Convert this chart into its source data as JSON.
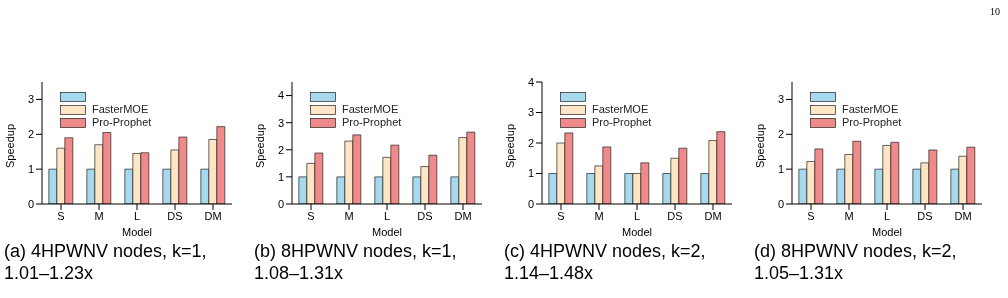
{
  "chart_data": [
    {
      "type": "bar",
      "title": "(a) 4HPWNV nodes, k=1, 1.01–1.23x",
      "xlabel": "Model",
      "ylabel": "Speedup",
      "categories": [
        "S",
        "M",
        "L",
        "DS",
        "DM"
      ],
      "ylim": [
        0,
        3.5
      ],
      "yticks": [
        0,
        1,
        2,
        3
      ],
      "legend": "top left",
      "grid": false,
      "series": [
        {
          "color": "#a6d8ee",
          "values": [
            1,
            1,
            1,
            1,
            1
          ]
        },
        {
          "name": "FasterMOE",
          "color": "#fde5c5",
          "values": [
            1.6,
            1.7,
            1.45,
            1.55,
            1.85
          ]
        },
        {
          "name": "Pro-Prophet",
          "color": "#f08a8a",
          "values": [
            1.9,
            2.05,
            1.47,
            1.92,
            2.22
          ]
        }
      ]
    },
    {
      "type": "bar",
      "title": "(b) 8HPWNV nodes, k=1, 1.08–1.31x",
      "xlabel": "Model",
      "ylabel": "Speedup",
      "categories": [
        "S",
        "M",
        "L",
        "DS",
        "DM"
      ],
      "ylim": [
        0,
        4.5
      ],
      "yticks": [
        0,
        1,
        2,
        3,
        4
      ],
      "legend": "top left",
      "grid": false,
      "series": [
        {
          "color": "#a6d8ee",
          "values": [
            1,
            1,
            1,
            1,
            1
          ]
        },
        {
          "name": "FasterMOE",
          "color": "#fde5c5",
          "values": [
            1.5,
            2.32,
            1.72,
            1.38,
            2.45
          ]
        },
        {
          "name": "Pro-Prophet",
          "color": "#f08a8a",
          "values": [
            1.88,
            2.55,
            2.17,
            1.8,
            2.65
          ]
        }
      ]
    },
    {
      "type": "bar",
      "title": "(c) 4HPWNV nodes, k=2, 1.14–1.48x",
      "xlabel": "Model",
      "ylabel": "Speedup",
      "categories": [
        "S",
        "M",
        "L",
        "DS",
        "DM"
      ],
      "ylim": [
        0,
        4
      ],
      "yticks": [
        0,
        1,
        2,
        3,
        4
      ],
      "legend": "top left",
      "grid": false,
      "series": [
        {
          "color": "#a6d8ee",
          "values": [
            1,
            1,
            1,
            1,
            1
          ]
        },
        {
          "name": "FasterMOE",
          "color": "#fde5c5",
          "values": [
            2.0,
            1.25,
            1.0,
            1.5,
            2.08
          ]
        },
        {
          "name": "Pro-Prophet",
          "color": "#f08a8a",
          "values": [
            2.33,
            1.87,
            1.35,
            1.83,
            2.37
          ]
        }
      ]
    },
    {
      "type": "bar",
      "title": "(d) 8HPWNV nodes, k=2, 1.05–1.31x",
      "xlabel": "Model",
      "ylabel": "Speedup",
      "categories": [
        "S",
        "M",
        "L",
        "DS",
        "DM"
      ],
      "ylim": [
        0,
        3.5
      ],
      "yticks": [
        0,
        1,
        2,
        3
      ],
      "legend": "top left",
      "grid": false,
      "annotations": [
        "10"
      ],
      "series": [
        {
          "color": "#a6d8ee",
          "values": [
            1,
            1,
            1,
            1,
            1
          ]
        },
        {
          "name": "FasterMOE",
          "color": "#fde5c5",
          "values": [
            1.22,
            1.42,
            1.68,
            1.18,
            1.37
          ]
        },
        {
          "name": "Pro-Prophet",
          "color": "#f08a8a",
          "values": [
            1.58,
            1.8,
            1.77,
            1.55,
            1.63
          ]
        }
      ]
    }
  ]
}
